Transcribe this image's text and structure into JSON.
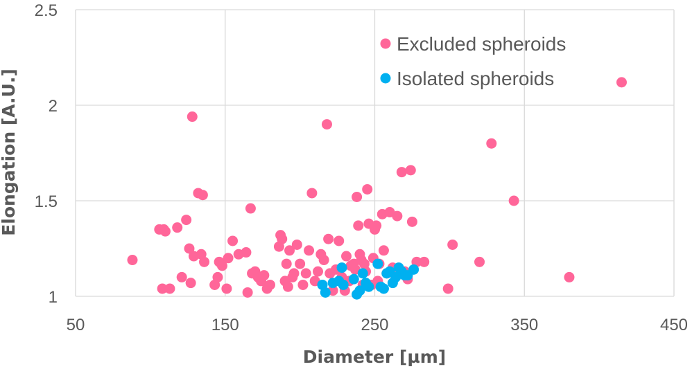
{
  "chart_data": {
    "type": "scatter",
    "title": "",
    "xlabel": "Diameter [µm]",
    "ylabel": "Elongation [A.U.]",
    "xlim": [
      50,
      450
    ],
    "ylim": [
      1,
      2.5
    ],
    "xticks": [
      50,
      150,
      250,
      350,
      450
    ],
    "yticks": [
      1,
      1.5,
      2,
      2.5
    ],
    "xtick_labels": [
      "50",
      "150",
      "250",
      "350",
      "450"
    ],
    "ytick_labels": [
      "1",
      "1.5",
      "2",
      "2.5"
    ],
    "grid": true,
    "legend_position": "top-right",
    "series": [
      {
        "name": "Excluded spheroids",
        "color": "#ff6699",
        "x": [
          88,
          106,
          108,
          109,
          110,
          113,
          118,
          121,
          124,
          126,
          127,
          128,
          129,
          132,
          134,
          135,
          136,
          143,
          145,
          146,
          148,
          151,
          152,
          155,
          159,
          164,
          165,
          167,
          168,
          170,
          172,
          174,
          176,
          178,
          180,
          186,
          187,
          188,
          190,
          191,
          192,
          193,
          195,
          196,
          198,
          200,
          202,
          204,
          206,
          208,
          210,
          212,
          214,
          216,
          218,
          219,
          220,
          222,
          224,
          226,
          228,
          230,
          231,
          233,
          234,
          236,
          237,
          238,
          239,
          240,
          241,
          242,
          243,
          244,
          245,
          246,
          248,
          249,
          250,
          251,
          252,
          253,
          255,
          256,
          258,
          260,
          262,
          265,
          268,
          270,
          272,
          274,
          275,
          278,
          283,
          299,
          302,
          320,
          328,
          343,
          380,
          415
        ],
        "y": [
          1.19,
          1.35,
          1.04,
          1.35,
          1.34,
          1.04,
          1.36,
          1.1,
          1.4,
          1.25,
          1.07,
          1.94,
          1.21,
          1.54,
          1.22,
          1.53,
          1.18,
          1.06,
          1.1,
          1.18,
          1.16,
          1.04,
          1.2,
          1.29,
          1.22,
          1.23,
          1.02,
          1.46,
          1.12,
          1.13,
          1.1,
          1.08,
          1.11,
          1.04,
          1.06,
          1.26,
          1.32,
          1.3,
          1.08,
          1.17,
          1.05,
          1.24,
          1.1,
          1.12,
          1.27,
          1.17,
          1.06,
          1.12,
          1.24,
          1.54,
          1.08,
          1.13,
          1.22,
          1.19,
          1.9,
          1.3,
          1.12,
          1.03,
          1.14,
          1.29,
          1.1,
          1.03,
          1.21,
          1.08,
          1.16,
          1.17,
          1.14,
          1.52,
          1.37,
          1.22,
          1.19,
          1.06,
          1.17,
          1.13,
          1.56,
          1.38,
          1.06,
          1.2,
          1.35,
          1.37,
          1.08,
          1.17,
          1.43,
          1.24,
          1.12,
          1.44,
          1.15,
          1.42,
          1.65,
          1.13,
          1.09,
          1.66,
          1.39,
          1.18,
          1.18,
          1.04,
          1.27,
          1.18,
          1.8,
          1.5,
          1.1,
          2.12
        ]
      },
      {
        "name": "Isolated spheroids",
        "color": "#00b0f0",
        "x": [
          215,
          217,
          222,
          226,
          228,
          229,
          236,
          238,
          240,
          242,
          244,
          246,
          252,
          254,
          256,
          258,
          260,
          262,
          264,
          266,
          268,
          270,
          272,
          276
        ],
        "y": [
          1.06,
          1.02,
          1.07,
          1.08,
          1.15,
          1.06,
          1.09,
          1.01,
          1.03,
          1.12,
          1.07,
          1.05,
          1.17,
          1.05,
          1.04,
          1.12,
          1.13,
          1.07,
          1.1,
          1.15,
          1.13,
          1.11,
          1.11,
          1.14
        ]
      }
    ]
  }
}
